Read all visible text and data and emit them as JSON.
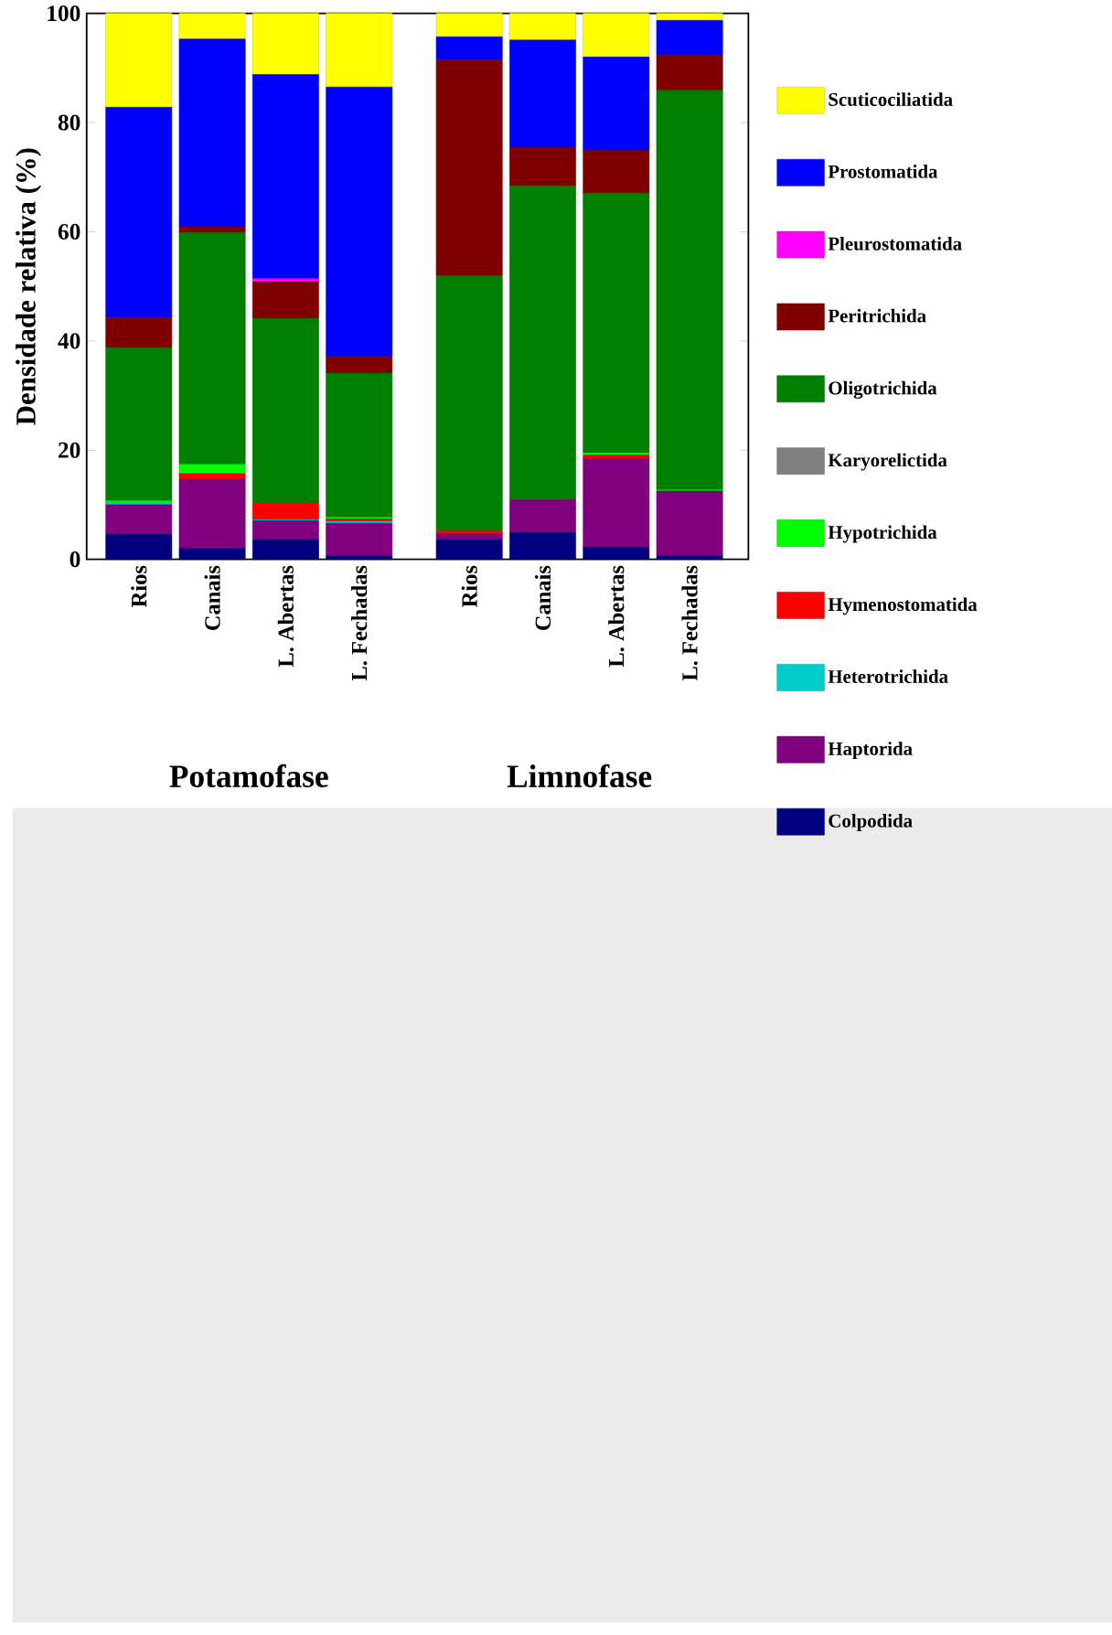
{
  "chart_data": {
    "type": "bar",
    "stacked": true,
    "ylabel": "Densidade relativa (%)",
    "categories": [
      "Rios",
      "Canais",
      "L. Abertas",
      "L. Fechadas",
      "Rios",
      "Canais",
      "L. Abertas",
      "L. Fechadas"
    ],
    "annotations": [
      "Potamofase",
      "Limnofase"
    ],
    "ylim": [
      0,
      100
    ],
    "yticks": [
      0,
      20,
      40,
      60,
      80,
      100
    ],
    "legend": "right",
    "series": [
      {
        "name": "Colpodida",
        "color": "#000080",
        "values": [
          4.6,
          2.0,
          3.6,
          0.6,
          3.6,
          4.9,
          2.2,
          0.6
        ]
      },
      {
        "name": "Haptorida",
        "color": "#800080",
        "values": [
          5.4,
          12.6,
          3.5,
          6.0,
          1.1,
          6.0,
          16.3,
          11.9
        ]
      },
      {
        "name": "Heterotrichida",
        "color": "#00cccc",
        "values": [
          0.4,
          0,
          0.2,
          0.4,
          0,
          0,
          0,
          0
        ]
      },
      {
        "name": "Hymenostomatida",
        "color": "#ff0000",
        "values": [
          0,
          1.1,
          3.0,
          0.4,
          0.5,
          0,
          0.6,
          0
        ]
      },
      {
        "name": "Hypotrichida",
        "color": "#00ff00",
        "values": [
          0.3,
          1.7,
          0,
          0.3,
          0,
          0,
          0.4,
          0.2
        ]
      },
      {
        "name": "Karyorelictida",
        "color": "#808080",
        "values": [
          0,
          0,
          0,
          0,
          0,
          0,
          0,
          0
        ]
      },
      {
        "name": "Oligotrichida",
        "color": "#008000",
        "values": [
          28.0,
          42.4,
          33.8,
          26.4,
          46.7,
          57.5,
          47.6,
          73.2
        ]
      },
      {
        "name": "Peritrichida",
        "color": "#800000",
        "values": [
          5.6,
          1.1,
          6.7,
          3.0,
          39.6,
          7.1,
          7.8,
          6.4
        ]
      },
      {
        "name": "Pleurostomatida",
        "color": "#ff00ff",
        "values": [
          0,
          0,
          0.6,
          0,
          0,
          0,
          0,
          0
        ]
      },
      {
        "name": "Prostomatida",
        "color": "#0000ff",
        "values": [
          38.5,
          34.4,
          37.4,
          49.4,
          4.2,
          19.6,
          17.1,
          6.4
        ]
      },
      {
        "name": "Scuticociliatida",
        "color": "#ffff00",
        "values": [
          17.2,
          4.7,
          11.2,
          13.5,
          4.3,
          4.9,
          8.0,
          1.3
        ]
      }
    ]
  }
}
